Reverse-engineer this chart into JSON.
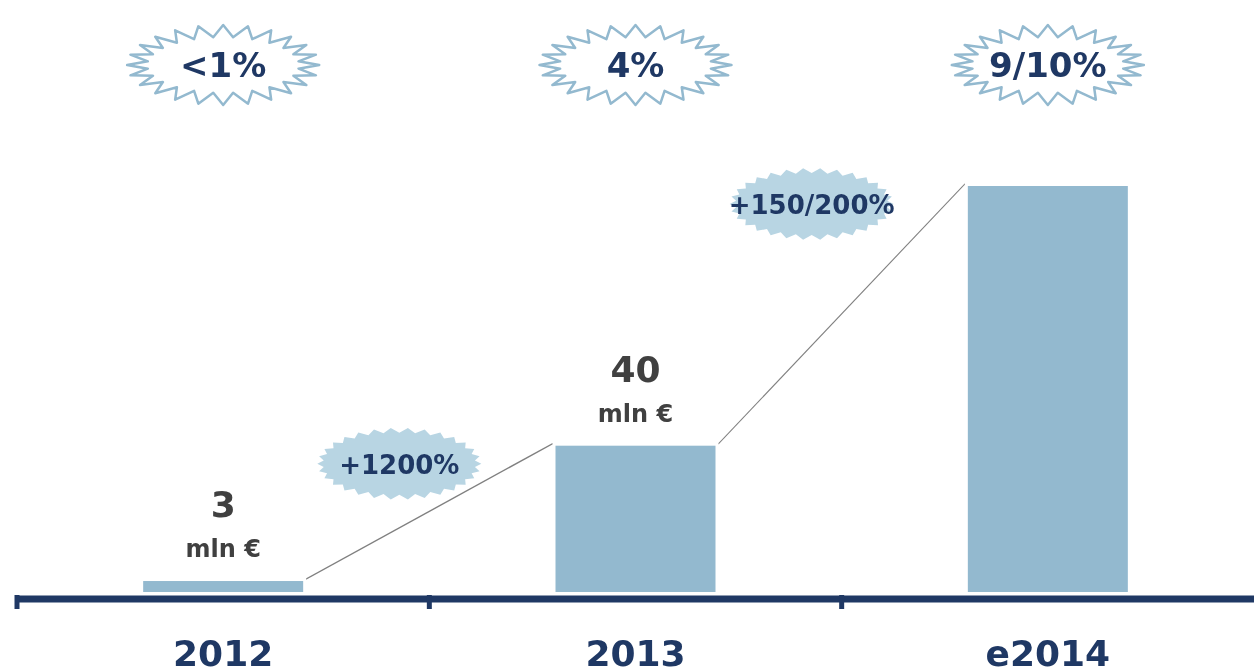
{
  "chart_data": {
    "type": "bar",
    "categories": [
      "2012",
      "2013",
      "e2014"
    ],
    "values": [
      3,
      40,
      111
    ],
    "color": "#93b9cf",
    "value_labels": [
      "3 mln €",
      "40 mln €",
      null
    ],
    "annotations": [
      "<1%",
      "4%",
      "9/10%",
      "+1200%",
      "+150/200%"
    ]
  }
}
